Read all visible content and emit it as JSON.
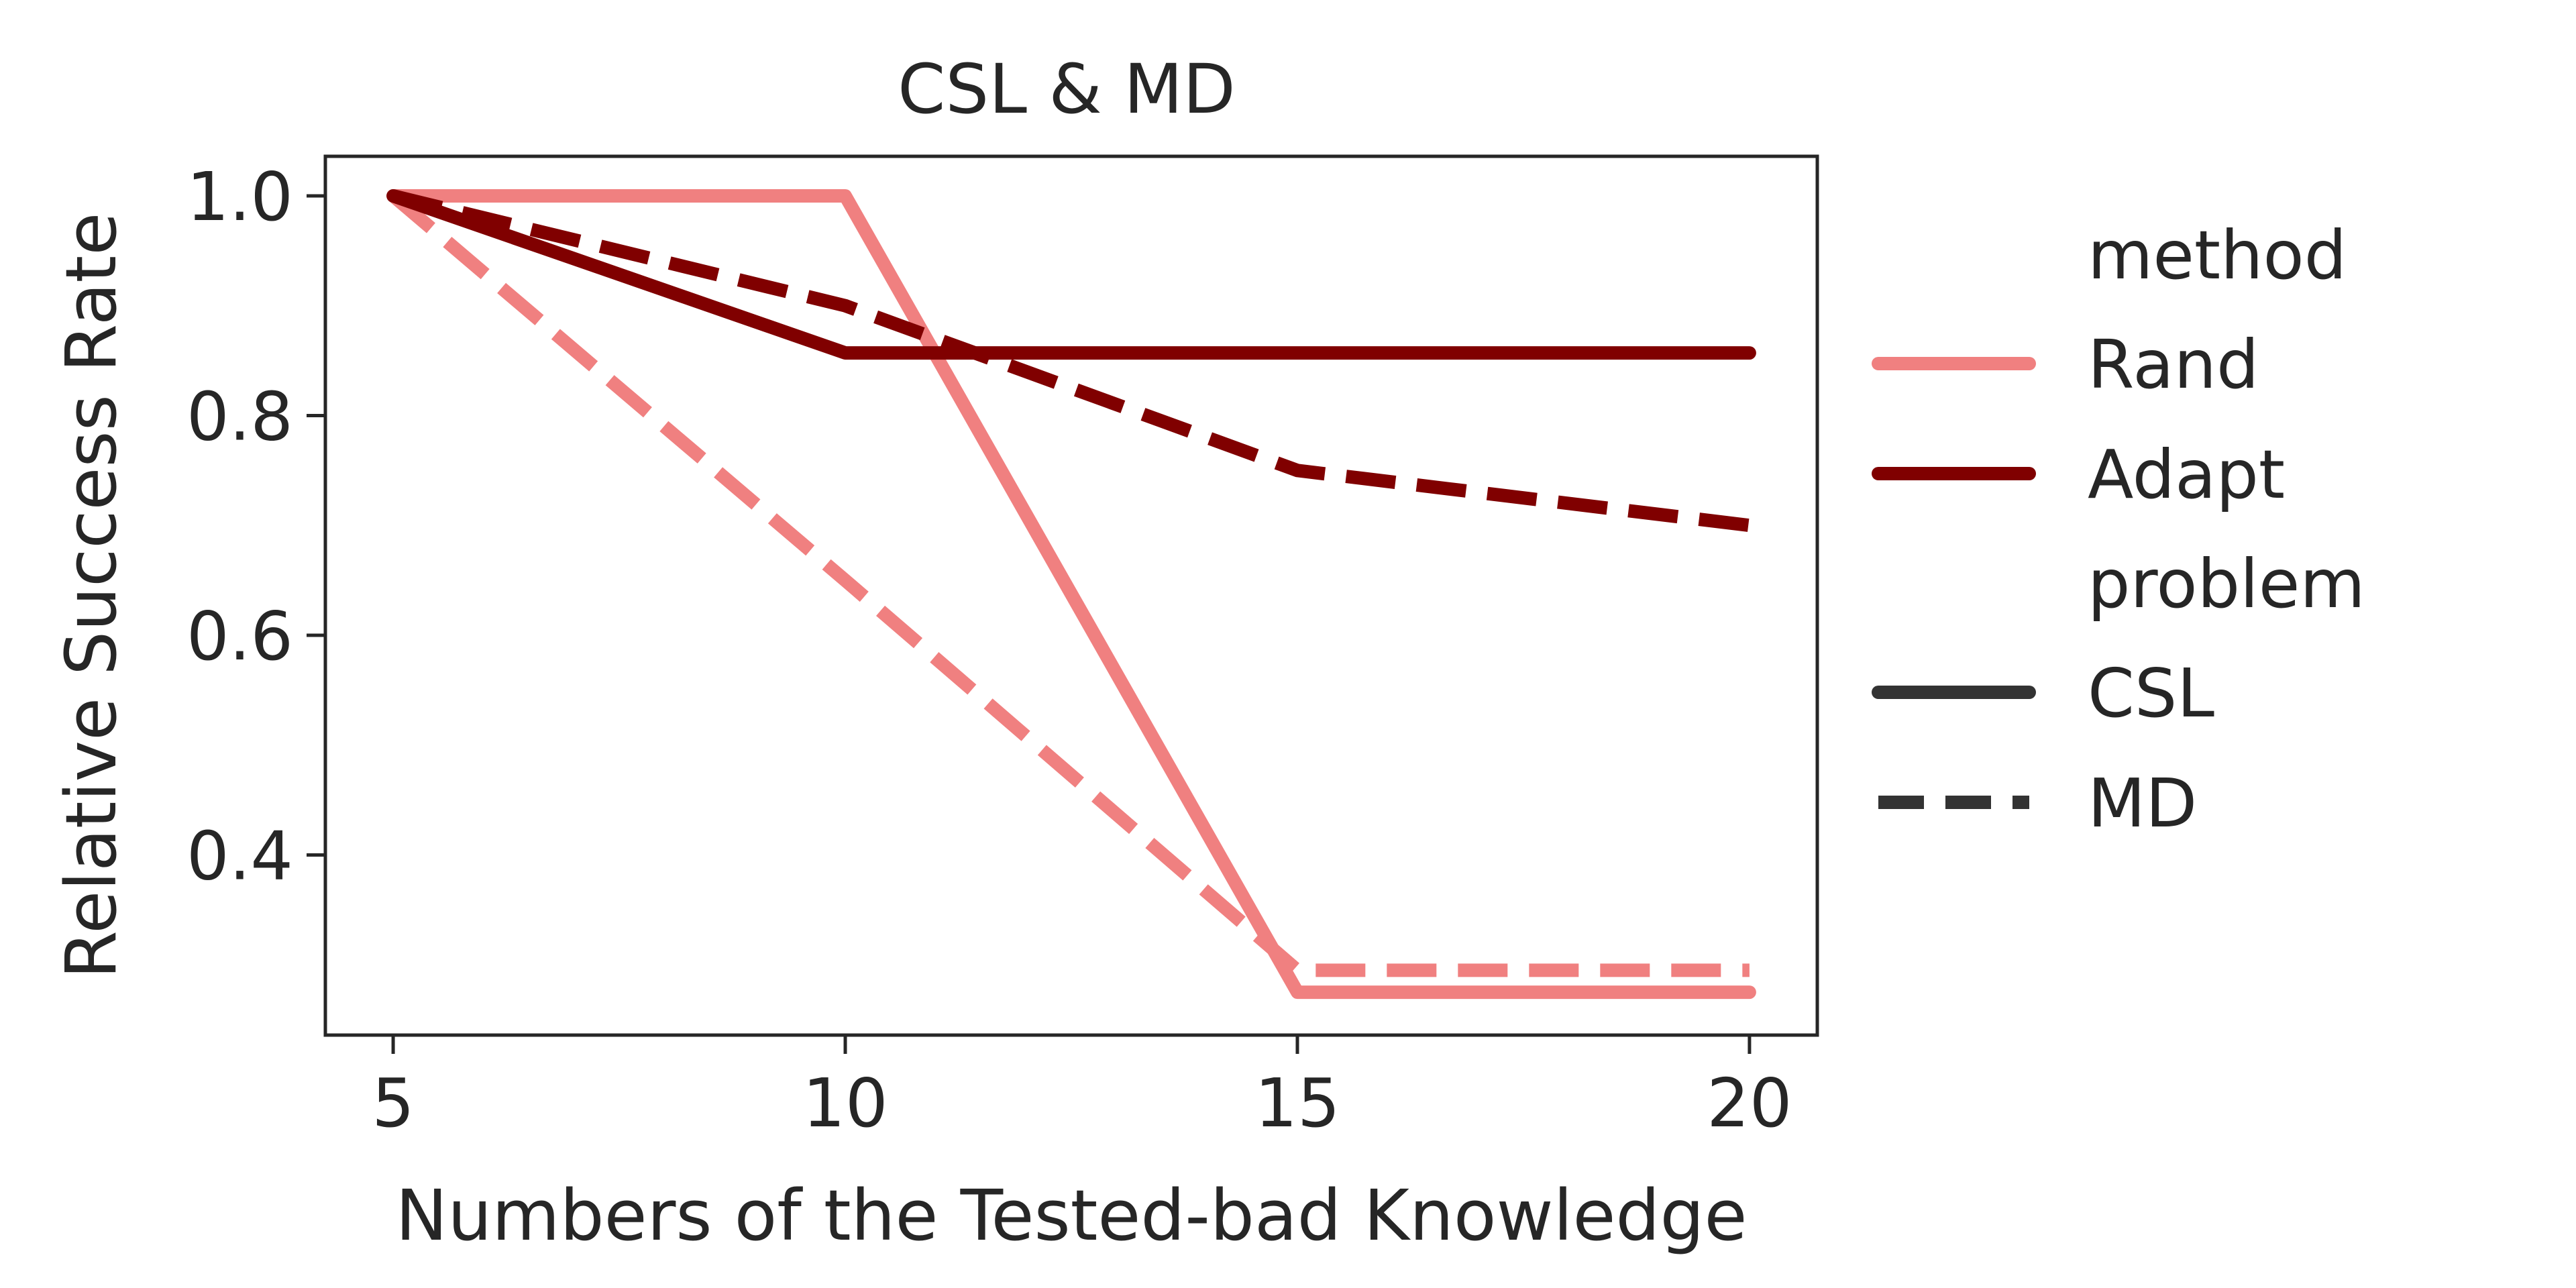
{
  "chart_data": {
    "type": "line",
    "title": "CSL & MD",
    "xlabel": "Numbers of the Tested-bad Knowledge",
    "ylabel": "Relative Success Rate",
    "x": [
      5,
      10,
      15,
      20
    ],
    "xticks": [
      "5",
      "10",
      "15",
      "20"
    ],
    "yticks": [
      "0.4",
      "0.6",
      "0.8",
      "1.0"
    ],
    "xlim": [
      4.25,
      20.75
    ],
    "ylim": [
      0.236,
      1.036
    ],
    "grid": false,
    "legend_placement": "outside-right",
    "legend": {
      "method_title": "method",
      "problem_title": "problem",
      "methods": [
        {
          "label": "Rand",
          "color": "#F08080"
        },
        {
          "label": "Adapt",
          "color": "#800000"
        }
      ],
      "problems": [
        {
          "label": "CSL",
          "dash": "solid"
        },
        {
          "label": "MD",
          "dash": "dashed"
        }
      ]
    },
    "series": [
      {
        "method": "Rand",
        "problem": "CSL",
        "color": "#F08080",
        "dash": "solid",
        "values": [
          1.0,
          1.0,
          0.275,
          0.275
        ]
      },
      {
        "method": "Rand",
        "problem": "MD",
        "color": "#F08080",
        "dash": "dashed",
        "values": [
          1.0,
          0.65,
          0.295,
          0.295
        ]
      },
      {
        "method": "Adapt",
        "problem": "CSL",
        "color": "#800000",
        "dash": "solid",
        "values": [
          1.0,
          0.857,
          0.857,
          0.857
        ]
      },
      {
        "method": "Adapt",
        "problem": "MD",
        "color": "#800000",
        "dash": "dashed",
        "values": [
          1.0,
          0.9,
          0.75,
          0.7
        ]
      }
    ]
  }
}
